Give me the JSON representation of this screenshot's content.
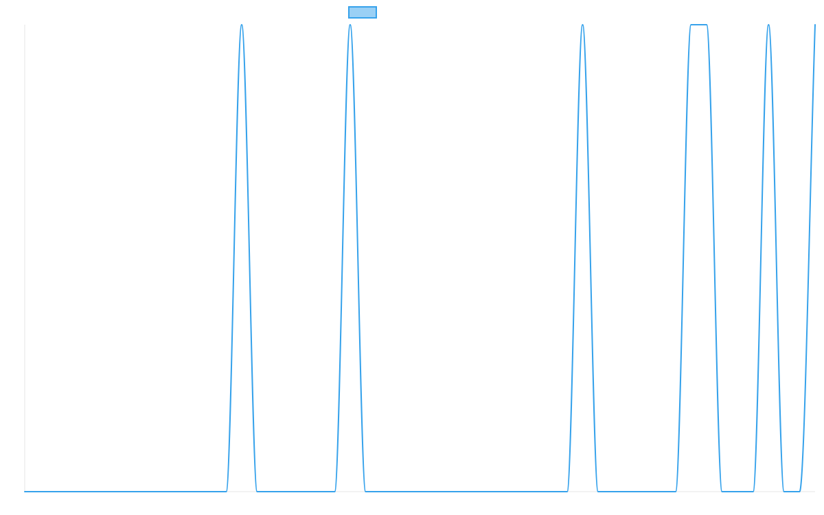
{
  "chart_data": {
    "type": "line",
    "title": "",
    "xlabel": "",
    "ylabel": "",
    "grid": false,
    "legend": "top-center",
    "x": [
      0,
      1,
      2,
      3,
      4,
      5,
      6,
      7,
      8,
      9,
      10,
      11,
      12,
      13,
      14,
      15,
      16,
      17,
      18,
      19,
      20,
      21,
      22,
      23,
      24,
      25,
      26,
      27,
      28,
      29,
      30,
      31,
      32,
      33,
      34,
      35,
      36,
      37,
      38,
      39,
      40,
      41,
      42,
      43,
      44,
      45,
      46,
      47,
      48,
      49,
      50,
      51
    ],
    "xlim": [
      0,
      51
    ],
    "ylim": [
      0,
      1
    ],
    "series": [
      {
        "name": "",
        "color": "#36a2eb",
        "fill": "#9ad0f5",
        "values": [
          0,
          0,
          0,
          0,
          0,
          0,
          0,
          0,
          0,
          0,
          0,
          0,
          0,
          0,
          1,
          0,
          0,
          0,
          0,
          0,
          0,
          1,
          0,
          0,
          0,
          0,
          0,
          0,
          0,
          0,
          0,
          0,
          0,
          0,
          0,
          0,
          1,
          0,
          0,
          0,
          0,
          0,
          0,
          1,
          1,
          0,
          0,
          0,
          1,
          0,
          0,
          1
        ]
      }
    ]
  }
}
